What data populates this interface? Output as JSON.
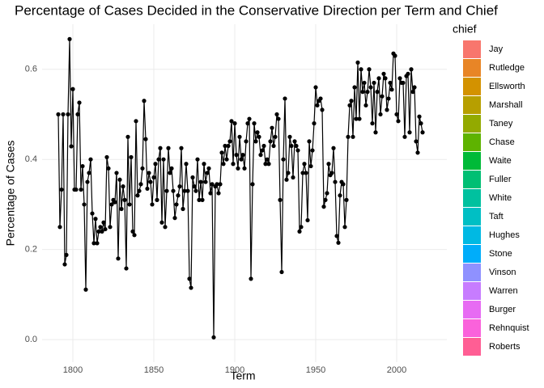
{
  "chart_data": {
    "type": "line",
    "title": "Percentage of Cases Decided in the Conservative Direction per Term and Chief",
    "x_label": "Term",
    "y_label": "Percentage of Cases",
    "x": [
      1791,
      1792,
      1793,
      1794,
      1795,
      1796,
      1797,
      1798,
      1799,
      1800,
      1801,
      1802,
      1803,
      1804,
      1805,
      1806,
      1807,
      1808,
      1809,
      1810,
      1811,
      1812,
      1813,
      1814,
      1815,
      1816,
      1817,
      1818,
      1819,
      1820,
      1821,
      1822,
      1823,
      1824,
      1825,
      1826,
      1827,
      1828,
      1829,
      1830,
      1831,
      1832,
      1833,
      1834,
      1835,
      1836,
      1837,
      1838,
      1839,
      1840,
      1841,
      1842,
      1843,
      1844,
      1845,
      1846,
      1847,
      1848,
      1849,
      1850,
      1851,
      1852,
      1853,
      1854,
      1855,
      1856,
      1857,
      1858,
      1859,
      1860,
      1861,
      1862,
      1863,
      1864,
      1865,
      1866,
      1867,
      1868,
      1869,
      1870,
      1871,
      1872,
      1873,
      1874,
      1875,
      1876,
      1877,
      1878,
      1879,
      1880,
      1881,
      1882,
      1883,
      1884,
      1885,
      1886,
      1887,
      1888,
      1889,
      1890,
      1891,
      1892,
      1893,
      1894,
      1895,
      1896,
      1897,
      1898,
      1899,
      1900,
      1901,
      1902,
      1903,
      1904,
      1905,
      1906,
      1907,
      1908,
      1909,
      1910,
      1911,
      1912,
      1913,
      1914,
      1915,
      1916,
      1917,
      1918,
      1919,
      1920,
      1921,
      1922,
      1923,
      1924,
      1925,
      1926,
      1927,
      1928,
      1929,
      1930,
      1931,
      1932,
      1933,
      1934,
      1935,
      1936,
      1937,
      1938,
      1939,
      1940,
      1941,
      1942,
      1943,
      1944,
      1945,
      1946,
      1947,
      1948,
      1949,
      1950,
      1951,
      1952,
      1953,
      1954,
      1955,
      1956,
      1957,
      1958,
      1959,
      1960,
      1961,
      1962,
      1963,
      1964,
      1965,
      1966,
      1967,
      1968,
      1969,
      1970,
      1971,
      1972,
      1973,
      1974,
      1975,
      1976,
      1977,
      1978,
      1979,
      1980,
      1981,
      1982,
      1983,
      1984,
      1985,
      1986,
      1987,
      1988,
      1989,
      1990,
      1991,
      1992,
      1993,
      1994,
      1995,
      1996,
      1997,
      1998,
      1999,
      2000,
      2001,
      2002,
      2003,
      2004,
      2005,
      2006,
      2007,
      2008,
      2009,
      2010,
      2011,
      2012,
      2013,
      2014,
      2015,
      2016
    ],
    "series": [
      {
        "color": "#000000",
        "values": [
          0.5,
          0.25,
          0.333,
          0.5,
          0.167,
          0.188,
          0.5,
          0.667,
          0.429,
          0.556,
          0.333,
          0.333,
          0.5,
          0.526,
          0.333,
          0.385,
          0.3,
          0.111,
          0.35,
          0.37,
          0.4,
          0.28,
          0.214,
          0.268,
          0.214,
          0.24,
          0.25,
          0.24,
          0.26,
          0.245,
          0.405,
          0.38,
          0.25,
          0.3,
          0.31,
          0.305,
          0.37,
          0.18,
          0.355,
          0.29,
          0.34,
          0.31,
          0.158,
          0.45,
          0.3,
          0.405,
          0.24,
          0.232,
          0.485,
          0.32,
          0.33,
          0.345,
          0.38,
          0.53,
          0.445,
          0.335,
          0.37,
          0.35,
          0.3,
          0.36,
          0.39,
          0.31,
          0.4,
          0.425,
          0.26,
          0.4,
          0.25,
          0.33,
          0.425,
          0.37,
          0.38,
          0.33,
          0.27,
          0.3,
          0.32,
          0.34,
          0.425,
          0.29,
          0.33,
          0.39,
          0.33,
          0.135,
          0.115,
          0.36,
          0.34,
          0.33,
          0.4,
          0.31,
          0.35,
          0.31,
          0.39,
          0.35,
          0.37,
          0.38,
          0.325,
          0.345,
          0.005,
          0.34,
          0.345,
          0.325,
          0.345,
          0.415,
          0.39,
          0.43,
          0.4,
          0.43,
          0.44,
          0.485,
          0.39,
          0.48,
          0.41,
          0.38,
          0.45,
          0.4,
          0.41,
          0.38,
          0.44,
          0.48,
          0.49,
          0.135,
          0.345,
          0.48,
          0.44,
          0.46,
          0.45,
          0.41,
          0.42,
          0.43,
          0.39,
          0.4,
          0.39,
          0.44,
          0.47,
          0.43,
          0.45,
          0.5,
          0.49,
          0.31,
          0.15,
          0.4,
          0.535,
          0.355,
          0.37,
          0.45,
          0.43,
          0.36,
          0.44,
          0.43,
          0.42,
          0.24,
          0.25,
          0.37,
          0.39,
          0.37,
          0.265,
          0.44,
          0.385,
          0.42,
          0.48,
          0.56,
          0.52,
          0.53,
          0.535,
          0.51,
          0.295,
          0.31,
          0.325,
          0.39,
          0.365,
          0.37,
          0.425,
          0.35,
          0.23,
          0.215,
          0.32,
          0.35,
          0.345,
          0.25,
          0.31,
          0.45,
          0.52,
          0.53,
          0.45,
          0.56,
          0.49,
          0.615,
          0.49,
          0.6,
          0.55,
          0.57,
          0.52,
          0.55,
          0.6,
          0.56,
          0.48,
          0.57,
          0.46,
          0.55,
          0.58,
          0.5,
          0.54,
          0.59,
          0.58,
          0.51,
          0.535,
          0.57,
          0.555,
          0.635,
          0.63,
          0.5,
          0.485,
          0.58,
          0.57,
          0.57,
          0.45,
          0.585,
          0.59,
          0.46,
          0.6,
          0.55,
          0.56,
          0.44,
          0.415,
          0.495,
          0.48,
          0.46
        ]
      }
    ],
    "xlim": [
      1781,
      2031
    ],
    "ylim": [
      -0.05,
      0.7
    ],
    "xticks": [
      1800,
      1850,
      1900,
      1950,
      2000
    ],
    "yticks": [
      {
        "value": 0,
        "label": "0.0"
      },
      0.2,
      0.4,
      0.6
    ],
    "grid": true,
    "legend": {
      "title": "chief",
      "items": [
        {
          "name": "Jay",
          "color": "#F8766D"
        },
        {
          "name": "Rutledge",
          "color": "#E88526"
        },
        {
          "name": "Ellsworth",
          "color": "#D39200"
        },
        {
          "name": "Marshall",
          "color": "#B79F00"
        },
        {
          "name": "Taney",
          "color": "#93AA00"
        },
        {
          "name": "Chase",
          "color": "#5EB300"
        },
        {
          "name": "Waite",
          "color": "#00BA38"
        },
        {
          "name": "Fuller",
          "color": "#00BF74"
        },
        {
          "name": "White",
          "color": "#00C19F"
        },
        {
          "name": "Taft",
          "color": "#00BFC4"
        },
        {
          "name": "Hughes",
          "color": "#00B9E3"
        },
        {
          "name": "Stone",
          "color": "#00ADFA"
        },
        {
          "name": "Vinson",
          "color": "#8F91FF"
        },
        {
          "name": "Warren",
          "color": "#C77CFF"
        },
        {
          "name": "Burger",
          "color": "#E76BF3"
        },
        {
          "name": "Rehnquist",
          "color": "#FA62DB"
        },
        {
          "name": "Roberts",
          "color": "#FF5E94"
        }
      ]
    }
  }
}
